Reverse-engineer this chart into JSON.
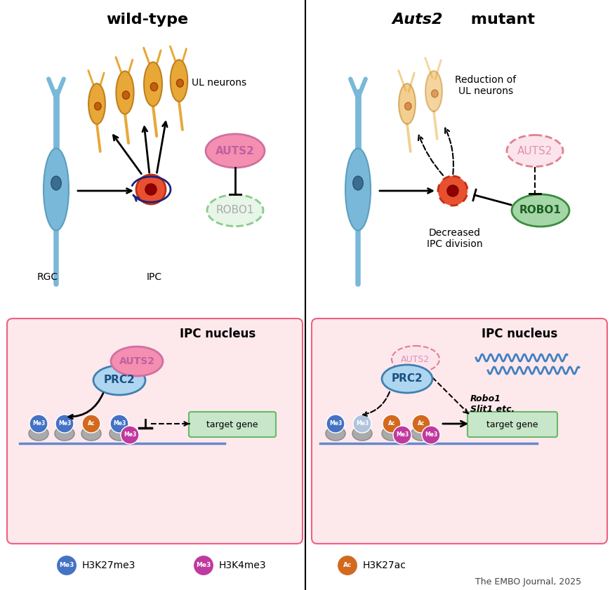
{
  "bg_color": "#ffffff",
  "panel_bg": "#fde8ec",
  "title_wt": "wild-type",
  "title_mut_italic": "Auts2",
  "title_mut_normal": " mutant",
  "auts2_color_wt": "#f48fb1",
  "auts2_color_mut": "#fce4ec",
  "robo1_color_mut_fill": "#a5d6a7",
  "robo1_color_mut_edge": "#388e3c",
  "prc2_color": "#aed6f1",
  "neuron_orange": "#e8a838",
  "neuron_blue": "#7ab8d9",
  "blue_nucleus": "#4080a0",
  "orange_nucleus": "#c06010",
  "ipc_color": "#e85030",
  "ipc_nucleus": "#900000",
  "navy": "#1a237e",
  "dna_color": "#6688cc",
  "target_gene_bg": "#c8e6c9",
  "target_gene_edge": "#66bb6a",
  "mark_blue": "#4472c4",
  "mark_purple": "#c0399e",
  "mark_orange": "#d2691e",
  "mark_lightblue": "#b0c4de",
  "squiggle_color": "#4080c0",
  "source_text": "The EMBO Journal, 2025",
  "legend_items": [
    {
      "label": "H3K27me3",
      "color": "#4472c4",
      "text": "Me3"
    },
    {
      "label": "H3K4me3",
      "color": "#c0399e",
      "text": "Me3"
    },
    {
      "label": "H3K27ac",
      "color": "#d2691e",
      "text": "Ac"
    }
  ]
}
